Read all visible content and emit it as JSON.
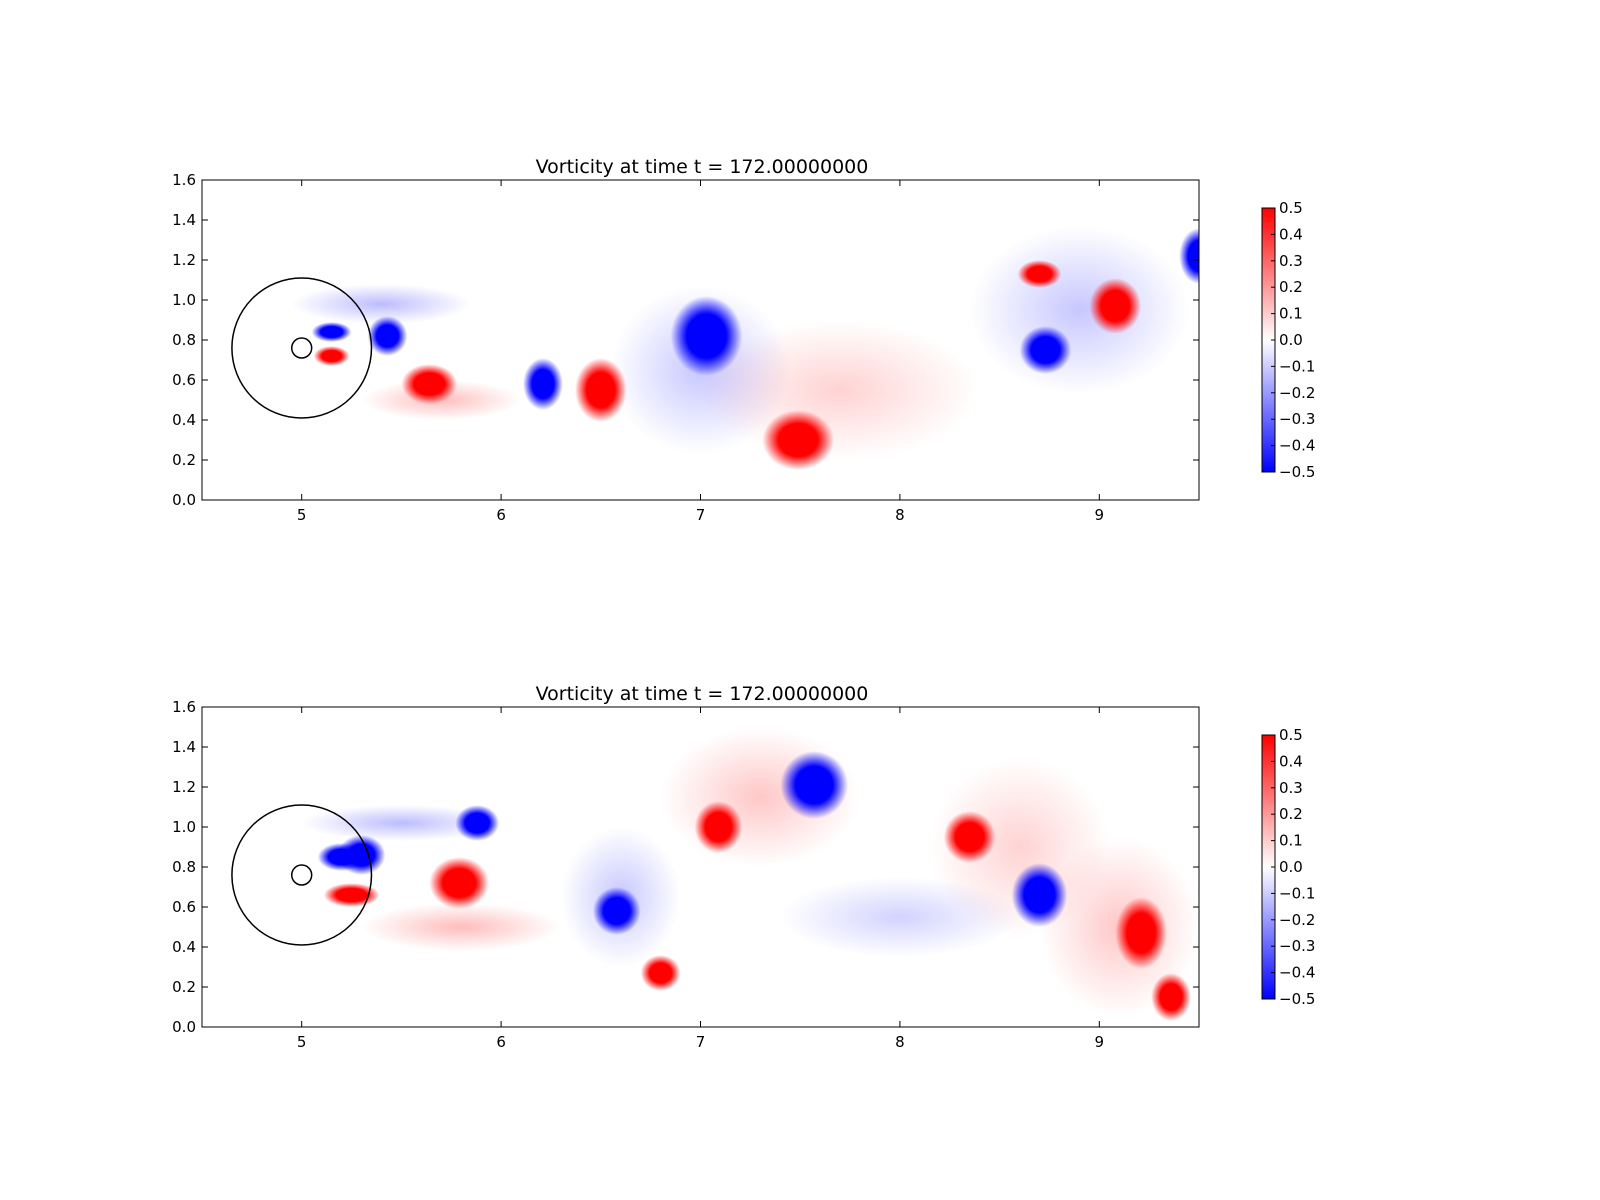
{
  "chart_data": [
    {
      "type": "heatmap",
      "title": "Vorticity at time t =   172.00000000",
      "xlabel": "",
      "ylabel": "",
      "xlim": [
        4.5,
        9.5
      ],
      "ylim": [
        0.0,
        1.6
      ],
      "xticks": [
        "5",
        "6",
        "7",
        "8",
        "9"
      ],
      "yticks": [
        "0.0",
        "0.2",
        "0.4",
        "0.6",
        "0.8",
        "1.0",
        "1.2",
        "1.4",
        "1.6"
      ],
      "colorbar": {
        "range": [
          -0.5,
          0.5
        ],
        "ticks": [
          "0.5",
          "0.4",
          "0.3",
          "0.2",
          "0.1",
          "0.0",
          "−0.1",
          "−0.2",
          "−0.3",
          "−0.4",
          "−0.5"
        ],
        "colormap": "bwr",
        "colors": {
          "positive": "#ff0000",
          "zero": "#ffffff",
          "negative": "#0000ff"
        }
      },
      "circles": [
        {
          "cx": 5.0,
          "cy": 0.76,
          "r": 0.35
        },
        {
          "cx": 5.0,
          "cy": 0.76,
          "r": 0.05
        }
      ],
      "vortices": [
        {
          "x": 5.15,
          "y": 0.84,
          "rx": 0.1,
          "ry": 0.05,
          "w": -0.5
        },
        {
          "x": 5.15,
          "y": 0.72,
          "rx": 0.09,
          "ry": 0.05,
          "w": 0.5
        },
        {
          "x": 5.43,
          "y": 0.82,
          "rx": 0.1,
          "ry": 0.1,
          "w": -0.5
        },
        {
          "x": 5.64,
          "y": 0.58,
          "rx": 0.14,
          "ry": 0.1,
          "w": 0.5
        },
        {
          "x": 6.21,
          "y": 0.58,
          "rx": 0.1,
          "ry": 0.13,
          "w": -0.5
        },
        {
          "x": 6.5,
          "y": 0.55,
          "rx": 0.13,
          "ry": 0.16,
          "w": 0.5
        },
        {
          "x": 7.03,
          "y": 0.82,
          "rx": 0.18,
          "ry": 0.2,
          "w": -0.5
        },
        {
          "x": 7.49,
          "y": 0.3,
          "rx": 0.18,
          "ry": 0.15,
          "w": 0.5
        },
        {
          "x": 8.7,
          "y": 1.13,
          "rx": 0.11,
          "ry": 0.07,
          "w": 0.5
        },
        {
          "x": 9.08,
          "y": 0.97,
          "rx": 0.13,
          "ry": 0.14,
          "w": 0.5
        },
        {
          "x": 8.73,
          "y": 0.75,
          "rx": 0.13,
          "ry": 0.12,
          "w": -0.5
        },
        {
          "x": 9.5,
          "y": 1.22,
          "rx": 0.1,
          "ry": 0.14,
          "w": -0.5
        }
      ],
      "filaments": [
        {
          "x": 5.4,
          "y": 0.98,
          "rx": 0.45,
          "ry": 0.1,
          "w": -0.06
        },
        {
          "x": 5.7,
          "y": 0.5,
          "rx": 0.4,
          "ry": 0.1,
          "w": 0.06
        },
        {
          "x": 7.0,
          "y": 0.65,
          "rx": 0.45,
          "ry": 0.42,
          "w": -0.05
        },
        {
          "x": 8.9,
          "y": 0.95,
          "rx": 0.55,
          "ry": 0.42,
          "w": -0.05
        },
        {
          "x": 7.7,
          "y": 0.55,
          "rx": 0.7,
          "ry": 0.35,
          "w": 0.04
        }
      ]
    },
    {
      "type": "heatmap",
      "title": "Vorticity at time t =   172.00000000",
      "xlabel": "",
      "ylabel": "",
      "xlim": [
        4.5,
        9.5
      ],
      "ylim": [
        0.0,
        1.6
      ],
      "xticks": [
        "5",
        "6",
        "7",
        "8",
        "9"
      ],
      "yticks": [
        "0.0",
        "0.2",
        "0.4",
        "0.6",
        "0.8",
        "1.0",
        "1.2",
        "1.4",
        "1.6"
      ],
      "colorbar": {
        "range": [
          -0.5,
          0.5
        ],
        "ticks": [
          "0.5",
          "0.4",
          "0.3",
          "0.2",
          "0.1",
          "0.0",
          "−0.1",
          "−0.2",
          "−0.3",
          "−0.4",
          "−0.5"
        ],
        "colormap": "bwr",
        "colors": {
          "positive": "#ff0000",
          "zero": "#ffffff",
          "negative": "#0000ff"
        }
      },
      "circles": [
        {
          "cx": 5.0,
          "cy": 0.76,
          "r": 0.35
        },
        {
          "cx": 5.0,
          "cy": 0.76,
          "r": 0.05
        }
      ],
      "vortices": [
        {
          "x": 5.2,
          "y": 0.85,
          "rx": 0.12,
          "ry": 0.07,
          "w": -0.5
        },
        {
          "x": 5.3,
          "y": 0.86,
          "rx": 0.12,
          "ry": 0.1,
          "w": -0.5
        },
        {
          "x": 5.25,
          "y": 0.66,
          "rx": 0.14,
          "ry": 0.06,
          "w": 0.5
        },
        {
          "x": 5.88,
          "y": 1.02,
          "rx": 0.11,
          "ry": 0.09,
          "w": -0.5
        },
        {
          "x": 5.79,
          "y": 0.72,
          "rx": 0.15,
          "ry": 0.13,
          "w": 0.5
        },
        {
          "x": 6.58,
          "y": 0.58,
          "rx": 0.12,
          "ry": 0.12,
          "w": -0.5
        },
        {
          "x": 6.8,
          "y": 0.27,
          "rx": 0.1,
          "ry": 0.09,
          "w": 0.5
        },
        {
          "x": 7.09,
          "y": 1.0,
          "rx": 0.12,
          "ry": 0.13,
          "w": 0.5
        },
        {
          "x": 7.57,
          "y": 1.21,
          "rx": 0.17,
          "ry": 0.17,
          "w": -0.5
        },
        {
          "x": 8.35,
          "y": 0.95,
          "rx": 0.13,
          "ry": 0.13,
          "w": 0.5
        },
        {
          "x": 8.7,
          "y": 0.66,
          "rx": 0.14,
          "ry": 0.16,
          "w": -0.5
        },
        {
          "x": 9.21,
          "y": 0.47,
          "rx": 0.13,
          "ry": 0.18,
          "w": 0.5
        },
        {
          "x": 9.36,
          "y": 0.15,
          "rx": 0.1,
          "ry": 0.12,
          "w": 0.5
        }
      ],
      "filaments": [
        {
          "x": 5.5,
          "y": 1.02,
          "rx": 0.5,
          "ry": 0.09,
          "w": -0.06
        },
        {
          "x": 5.8,
          "y": 0.5,
          "rx": 0.5,
          "ry": 0.12,
          "w": 0.06
        },
        {
          "x": 6.6,
          "y": 0.65,
          "rx": 0.3,
          "ry": 0.35,
          "w": -0.05
        },
        {
          "x": 7.3,
          "y": 1.15,
          "rx": 0.5,
          "ry": 0.35,
          "w": 0.05
        },
        {
          "x": 8.6,
          "y": 0.9,
          "rx": 0.45,
          "ry": 0.45,
          "w": 0.04
        },
        {
          "x": 9.1,
          "y": 0.5,
          "rx": 0.4,
          "ry": 0.45,
          "w": 0.05
        },
        {
          "x": 8.0,
          "y": 0.55,
          "rx": 0.6,
          "ry": 0.2,
          "w": -0.04
        }
      ]
    }
  ]
}
